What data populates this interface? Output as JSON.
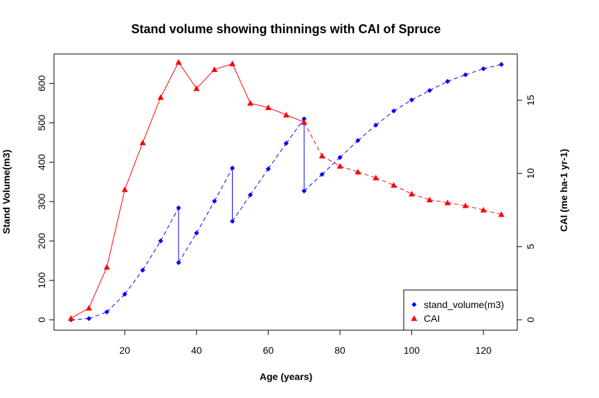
{
  "chart_data": {
    "type": "line",
    "title": "Stand volume showing thinnings with CAI of Spruce",
    "xlabel": "Age (years)",
    "ylabel": "Stand Volume(m3)",
    "y2label": "CAI (me ha-1 yr-1)",
    "xlim": [
      5,
      125
    ],
    "ylim": [
      0,
      650
    ],
    "y2lim": [
      0,
      17.5
    ],
    "x_ticks": [
      20,
      40,
      60,
      80,
      100,
      120
    ],
    "y_ticks": [
      0,
      100,
      200,
      300,
      400,
      500,
      600
    ],
    "y2_ticks": [
      0,
      5,
      10,
      15
    ],
    "grid": false,
    "legend": {
      "position": "bottom-right"
    },
    "series": [
      {
        "name": "stand_volume(m3)",
        "axis": "left",
        "color": "#0000ff",
        "marker": "diamond",
        "line": "dashed",
        "points": [
          [
            5,
            0
          ],
          [
            10,
            3
          ],
          [
            15,
            20
          ],
          [
            20,
            65
          ],
          [
            25,
            126
          ],
          [
            30,
            200
          ],
          [
            35,
            284
          ],
          [
            35,
            145
          ],
          [
            40,
            220
          ],
          [
            45,
            301
          ],
          [
            50,
            385
          ],
          [
            50,
            250
          ],
          [
            55,
            317
          ],
          [
            60,
            383
          ],
          [
            65,
            448
          ],
          [
            70,
            510
          ],
          [
            70,
            327
          ],
          [
            75,
            369
          ],
          [
            80,
            412
          ],
          [
            85,
            455
          ],
          [
            90,
            494
          ],
          [
            95,
            530
          ],
          [
            100,
            558
          ],
          [
            105,
            582
          ],
          [
            110,
            605
          ],
          [
            115,
            622
          ],
          [
            120,
            637
          ],
          [
            125,
            648
          ]
        ],
        "vertical_segments": [
          [
            35,
            284,
            145
          ],
          [
            50,
            385,
            250
          ],
          [
            70,
            510,
            327
          ]
        ]
      },
      {
        "name": "CAI",
        "axis": "right",
        "color": "#ff0000",
        "marker": "triangle",
        "line": "solid-then-dashed",
        "points": [
          [
            5,
            0.1
          ],
          [
            10,
            0.8
          ],
          [
            15,
            3.6
          ],
          [
            20,
            8.9
          ],
          [
            25,
            12.1
          ],
          [
            30,
            15.2
          ],
          [
            35,
            17.6
          ],
          [
            40,
            15.8
          ],
          [
            45,
            17.1
          ],
          [
            50,
            17.5
          ],
          [
            55,
            14.8
          ],
          [
            60,
            14.5
          ],
          [
            65,
            14.0
          ],
          [
            70,
            13.5
          ],
          [
            75,
            11.2
          ],
          [
            80,
            10.5
          ],
          [
            85,
            10.1
          ],
          [
            90,
            9.7
          ],
          [
            95,
            9.2
          ],
          [
            100,
            8.6
          ],
          [
            105,
            8.2
          ],
          [
            110,
            8.0
          ],
          [
            115,
            7.8
          ],
          [
            120,
            7.5
          ],
          [
            125,
            7.2
          ]
        ]
      }
    ]
  }
}
